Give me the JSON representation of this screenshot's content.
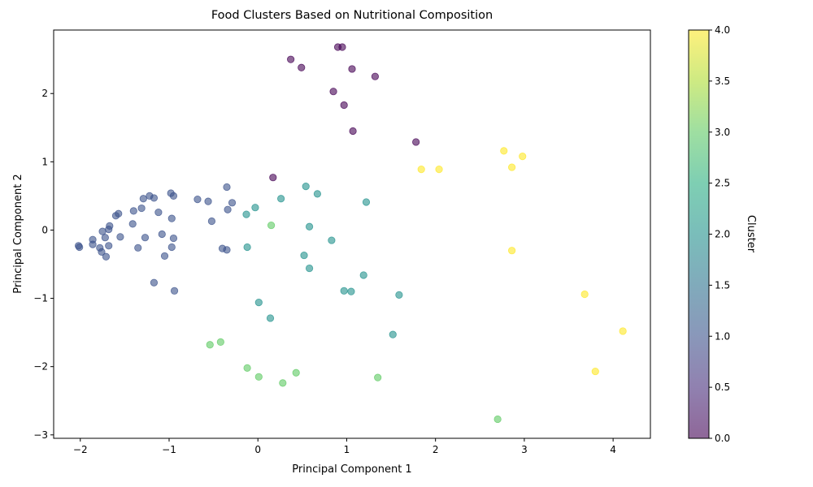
{
  "chart_data": {
    "type": "scatter",
    "title": "Food Clusters Based on Nutritional Composition",
    "xlabel": "Principal Component 1",
    "ylabel": "Principal Component 2",
    "xlim": [
      -2.3,
      4.42
    ],
    "ylim": [
      -3.05,
      2.93
    ],
    "xticks": [
      -2,
      -1,
      0,
      1,
      2,
      3,
      4
    ],
    "yticks": [
      -3,
      -2,
      -1,
      0,
      1,
      2
    ],
    "grid": false,
    "point_alpha": 0.6,
    "colorbar": {
      "label": "Cluster",
      "range": [
        0,
        4
      ],
      "ticks": [
        "0.0",
        "0.5",
        "1.0",
        "1.5",
        "2.0",
        "2.5",
        "3.0",
        "3.5",
        "4.0"
      ],
      "colormap": "viridis",
      "stops": [
        "#440154",
        "#472d7b",
        "#3b528b",
        "#2c728e",
        "#21918c",
        "#28ae80",
        "#5ec962",
        "#addc30",
        "#fde725"
      ]
    },
    "cluster_colors": {
      "0": "#440154",
      "1": "#3b528b",
      "2": "#21918c",
      "3": "#5ec962",
      "4": "#fde725"
    },
    "points": [
      {
        "x": 0.37,
        "y": 2.5,
        "c": 0
      },
      {
        "x": 0.49,
        "y": 2.38,
        "c": 0
      },
      {
        "x": 0.9,
        "y": 2.68,
        "c": 0
      },
      {
        "x": 0.95,
        "y": 2.68,
        "c": 0
      },
      {
        "x": 1.06,
        "y": 2.36,
        "c": 0
      },
      {
        "x": 1.32,
        "y": 2.25,
        "c": 0
      },
      {
        "x": 0.85,
        "y": 2.03,
        "c": 0
      },
      {
        "x": 0.97,
        "y": 1.83,
        "c": 0
      },
      {
        "x": 1.07,
        "y": 1.45,
        "c": 0
      },
      {
        "x": 1.78,
        "y": 1.29,
        "c": 0
      },
      {
        "x": 0.17,
        "y": 0.77,
        "c": 0
      },
      {
        "x": -2.02,
        "y": -0.23,
        "c": 1
      },
      {
        "x": -2.01,
        "y": -0.25,
        "c": 1
      },
      {
        "x": -1.86,
        "y": -0.14,
        "c": 1
      },
      {
        "x": -1.86,
        "y": -0.21,
        "c": 1
      },
      {
        "x": -1.78,
        "y": -0.26,
        "c": 1
      },
      {
        "x": -1.76,
        "y": -0.32,
        "c": 1
      },
      {
        "x": -1.71,
        "y": -0.39,
        "c": 1
      },
      {
        "x": -1.68,
        "y": -0.23,
        "c": 1
      },
      {
        "x": -1.72,
        "y": -0.11,
        "c": 1
      },
      {
        "x": -1.75,
        "y": -0.02,
        "c": 1
      },
      {
        "x": -1.68,
        "y": 0.01,
        "c": 1
      },
      {
        "x": -1.67,
        "y": 0.06,
        "c": 1
      },
      {
        "x": -1.6,
        "y": 0.21,
        "c": 1
      },
      {
        "x": -1.57,
        "y": 0.24,
        "c": 1
      },
      {
        "x": -1.55,
        "y": -0.1,
        "c": 1
      },
      {
        "x": -1.41,
        "y": 0.09,
        "c": 1
      },
      {
        "x": -1.4,
        "y": 0.28,
        "c": 1
      },
      {
        "x": -1.35,
        "y": -0.26,
        "c": 1
      },
      {
        "x": -1.31,
        "y": 0.32,
        "c": 1
      },
      {
        "x": -1.29,
        "y": 0.46,
        "c": 1
      },
      {
        "x": -1.27,
        "y": -0.11,
        "c": 1
      },
      {
        "x": -1.22,
        "y": 0.5,
        "c": 1
      },
      {
        "x": -1.17,
        "y": 0.47,
        "c": 1
      },
      {
        "x": -1.12,
        "y": 0.26,
        "c": 1
      },
      {
        "x": -1.08,
        "y": -0.06,
        "c": 1
      },
      {
        "x": -1.05,
        "y": -0.38,
        "c": 1
      },
      {
        "x": -0.98,
        "y": 0.54,
        "c": 1
      },
      {
        "x": -0.97,
        "y": 0.17,
        "c": 1
      },
      {
        "x": -0.97,
        "y": -0.25,
        "c": 1
      },
      {
        "x": -0.95,
        "y": 0.5,
        "c": 1
      },
      {
        "x": -0.95,
        "y": -0.12,
        "c": 1
      },
      {
        "x": -1.17,
        "y": -0.77,
        "c": 1
      },
      {
        "x": -0.94,
        "y": -0.89,
        "c": 1
      },
      {
        "x": -0.68,
        "y": 0.45,
        "c": 1
      },
      {
        "x": -0.56,
        "y": 0.42,
        "c": 1
      },
      {
        "x": -0.52,
        "y": 0.13,
        "c": 1
      },
      {
        "x": -0.4,
        "y": -0.27,
        "c": 1
      },
      {
        "x": -0.35,
        "y": 0.63,
        "c": 1
      },
      {
        "x": -0.34,
        "y": 0.3,
        "c": 1
      },
      {
        "x": -0.35,
        "y": -0.29,
        "c": 1
      },
      {
        "x": -0.29,
        "y": 0.4,
        "c": 1
      },
      {
        "x": -0.13,
        "y": 0.23,
        "c": 2
      },
      {
        "x": -0.12,
        "y": -0.25,
        "c": 2
      },
      {
        "x": -0.03,
        "y": 0.33,
        "c": 2
      },
      {
        "x": 0.26,
        "y": 0.46,
        "c": 2
      },
      {
        "x": 0.54,
        "y": 0.64,
        "c": 2
      },
      {
        "x": 0.67,
        "y": 0.53,
        "c": 2
      },
      {
        "x": 0.58,
        "y": 0.05,
        "c": 2
      },
      {
        "x": 0.52,
        "y": -0.37,
        "c": 2
      },
      {
        "x": 0.58,
        "y": -0.56,
        "c": 2
      },
      {
        "x": 0.83,
        "y": -0.15,
        "c": 2
      },
      {
        "x": 1.22,
        "y": 0.41,
        "c": 2
      },
      {
        "x": 1.19,
        "y": -0.66,
        "c": 2
      },
      {
        "x": 0.97,
        "y": -0.89,
        "c": 2
      },
      {
        "x": 1.05,
        "y": -0.9,
        "c": 2
      },
      {
        "x": 1.59,
        "y": -0.95,
        "c": 2
      },
      {
        "x": 0.01,
        "y": -1.06,
        "c": 2
      },
      {
        "x": 0.14,
        "y": -1.29,
        "c": 2
      },
      {
        "x": 1.52,
        "y": -1.53,
        "c": 2
      },
      {
        "x": 0.15,
        "y": 0.07,
        "c": 3
      },
      {
        "x": -0.54,
        "y": -1.68,
        "c": 3
      },
      {
        "x": -0.42,
        "y": -1.64,
        "c": 3
      },
      {
        "x": -0.12,
        "y": -2.02,
        "c": 3
      },
      {
        "x": 0.01,
        "y": -2.15,
        "c": 3
      },
      {
        "x": 0.28,
        "y": -2.24,
        "c": 3
      },
      {
        "x": 0.43,
        "y": -2.09,
        "c": 3
      },
      {
        "x": 1.35,
        "y": -2.16,
        "c": 3
      },
      {
        "x": 2.7,
        "y": -2.77,
        "c": 3
      },
      {
        "x": 1.84,
        "y": 0.89,
        "c": 4
      },
      {
        "x": 2.04,
        "y": 0.89,
        "c": 4
      },
      {
        "x": 2.77,
        "y": 1.16,
        "c": 4
      },
      {
        "x": 2.98,
        "y": 1.08,
        "c": 4
      },
      {
        "x": 2.86,
        "y": 0.92,
        "c": 4
      },
      {
        "x": 2.86,
        "y": -0.3,
        "c": 4
      },
      {
        "x": 3.68,
        "y": -0.94,
        "c": 4
      },
      {
        "x": 4.11,
        "y": -1.48,
        "c": 4
      },
      {
        "x": 3.8,
        "y": -2.07,
        "c": 4
      }
    ]
  }
}
